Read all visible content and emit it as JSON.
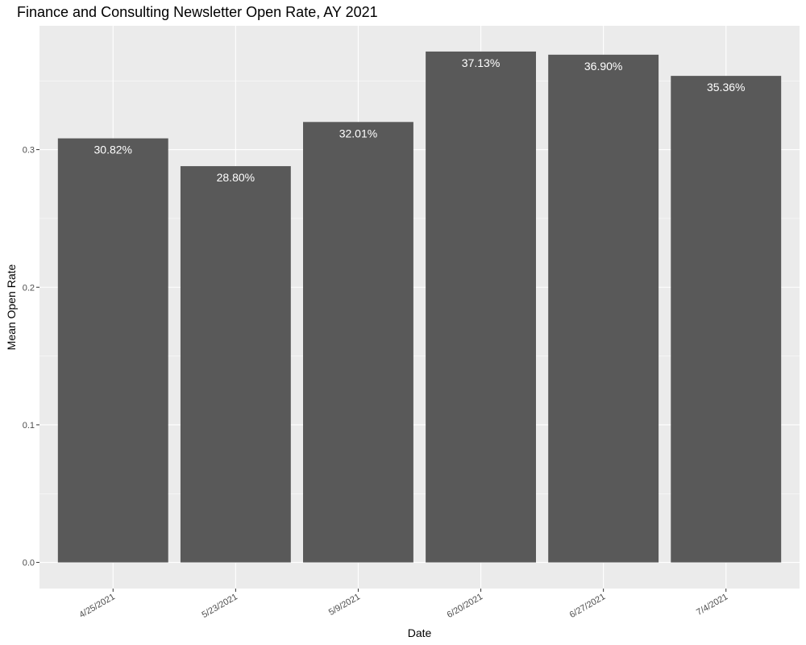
{
  "chart_data": {
    "type": "bar",
    "title": "Finance and Consulting Newsletter Open Rate, AY 2021",
    "xlabel": "Date",
    "ylabel": "Mean Open Rate",
    "categories": [
      "4/25/2021",
      "5/23/2021",
      "5/9/2021",
      "6/20/2021",
      "6/27/2021",
      "7/4/2021"
    ],
    "values": [
      0.3082,
      0.288,
      0.3201,
      0.3713,
      0.369,
      0.3536
    ],
    "data_labels": [
      "30.82%",
      "28.80%",
      "32.01%",
      "37.13%",
      "36.90%",
      "35.36%"
    ],
    "y_ticks": [
      0.0,
      0.1,
      0.2,
      0.3
    ],
    "y_tick_labels": [
      "0.0",
      "0.1",
      "0.2",
      "0.3"
    ],
    "ylim": [
      -0.019,
      0.39
    ],
    "grid": true,
    "legend": "none",
    "colors": {
      "bar": "#595959",
      "panel": "#ebebeb",
      "grid": "#ffffff",
      "label": "#ffffff"
    }
  }
}
